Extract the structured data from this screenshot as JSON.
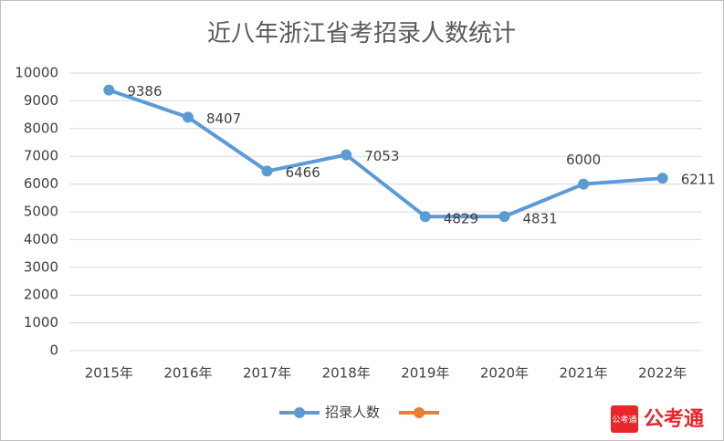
{
  "chart_data": {
    "type": "line",
    "title": "近八年浙江省考招录人数统计",
    "categories": [
      "2015年",
      "2016年",
      "2017年",
      "2018年",
      "2019年",
      "2020年",
      "2021年",
      "2022年"
    ],
    "series": [
      {
        "name": "招录人数",
        "color": "#5b9bd5",
        "values": [
          9386,
          8407,
          6466,
          7053,
          4829,
          4831,
          6000,
          6211
        ]
      }
    ],
    "ylim": [
      0,
      10000
    ],
    "yticks": [
      0,
      1000,
      2000,
      3000,
      4000,
      5000,
      6000,
      7000,
      8000,
      9000,
      10000
    ],
    "grid": true,
    "legend": "bottom"
  },
  "watermark": "公考通",
  "watermark_icon": "公考通"
}
